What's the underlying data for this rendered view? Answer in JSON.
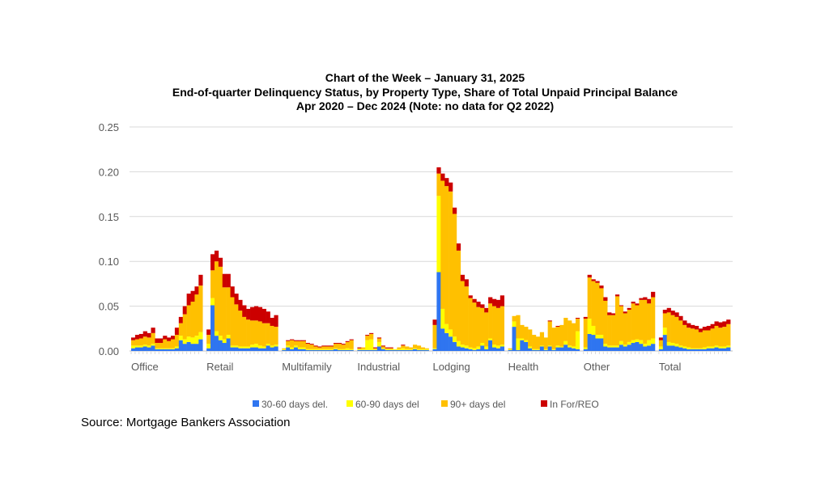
{
  "chart_data": {
    "type": "bar",
    "stacked": true,
    "title": [
      "Chart of the Week – January 31, 2025",
      "End-of-quarter Delinquency Status, by Property Type, Share of Total Unpaid Principal Balance",
      "Apr 2020 – Dec 2024 (Note: no data for Q2 2022)"
    ],
    "xlabel": "",
    "ylabel": "",
    "ylim": [
      0,
      0.25
    ],
    "yticks": [
      "0.00",
      "0.05",
      "0.10",
      "0.15",
      "0.20",
      "0.25"
    ],
    "grid": true,
    "legend_position": "bottom",
    "series_meta": [
      {
        "key": "d30",
        "name": "30-60 days del.",
        "color": "#2F75F0"
      },
      {
        "key": "d60",
        "name": "60-90 days del",
        "color": "#FFFF00"
      },
      {
        "key": "d90",
        "name": "90+ days del",
        "color": "#FFC000"
      },
      {
        "key": "reo",
        "name": "In For/REO",
        "color": "#CC0000"
      }
    ],
    "groups": [
      {
        "name": "Office",
        "d30": [
          0.003,
          0.004,
          0.004,
          0.005,
          0.004,
          0.006,
          0.002,
          0.002,
          0.002,
          0.002,
          0.002,
          0.003,
          0.012,
          0.008,
          0.01,
          0.008,
          0.008,
          0.013
        ],
        "d60": [
          0.003,
          0.002,
          0.002,
          0.002,
          0.002,
          0.002,
          0.001,
          0.001,
          0.001,
          0.001,
          0.001,
          0.002,
          0.005,
          0.005,
          0.006,
          0.007,
          0.009,
          0.008
        ],
        "d90": [
          0.006,
          0.007,
          0.008,
          0.009,
          0.009,
          0.012,
          0.006,
          0.006,
          0.01,
          0.008,
          0.01,
          0.013,
          0.014,
          0.028,
          0.035,
          0.04,
          0.046,
          0.052
        ],
        "reo": [
          0.003,
          0.005,
          0.005,
          0.006,
          0.005,
          0.006,
          0.005,
          0.005,
          0.004,
          0.004,
          0.004,
          0.008,
          0.007,
          0.009,
          0.013,
          0.012,
          0.009,
          0.012
        ]
      },
      {
        "name": "Retail",
        "d30": [
          0.003,
          0.051,
          0.017,
          0.012,
          0.009,
          0.014,
          0.004,
          0.004,
          0.003,
          0.003,
          0.003,
          0.004,
          0.004,
          0.003,
          0.003,
          0.006,
          0.004,
          0.005
        ],
        "d60": [
          0.005,
          0.008,
          0.005,
          0.005,
          0.004,
          0.004,
          0.002,
          0.002,
          0.002,
          0.002,
          0.002,
          0.003,
          0.004,
          0.003,
          0.002,
          0.002,
          0.002,
          0.002
        ],
        "d90": [
          0.01,
          0.031,
          0.078,
          0.077,
          0.058,
          0.053,
          0.054,
          0.046,
          0.04,
          0.033,
          0.03,
          0.027,
          0.026,
          0.027,
          0.026,
          0.023,
          0.022,
          0.02
        ],
        "reo": [
          0.006,
          0.018,
          0.012,
          0.01,
          0.015,
          0.015,
          0.012,
          0.012,
          0.012,
          0.013,
          0.012,
          0.015,
          0.016,
          0.016,
          0.016,
          0.013,
          0.009,
          0.013
        ]
      },
      {
        "name": "Multifamily",
        "d30": [
          0.001,
          0.004,
          0.002,
          0.004,
          0.002,
          0.002,
          0.001,
          0.001,
          0.001,
          0.001,
          0.001,
          0.001,
          0.001,
          0.002,
          0.001,
          0.001,
          0.001,
          0.001
        ],
        "d60": [
          0.001,
          0.002,
          0.002,
          0.002,
          0.002,
          0.002,
          0.001,
          0.001,
          0.001,
          0.001,
          0.001,
          0.001,
          0.001,
          0.001,
          0.001,
          0.001,
          0.002,
          0.001
        ],
        "d90": [
          0.001,
          0.005,
          0.008,
          0.005,
          0.007,
          0.007,
          0.006,
          0.005,
          0.003,
          0.002,
          0.003,
          0.003,
          0.003,
          0.005,
          0.006,
          0.005,
          0.007,
          0.01
        ],
        "reo": [
          0.0,
          0.001,
          0.001,
          0.001,
          0.001,
          0.001,
          0.001,
          0.001,
          0.001,
          0.001,
          0.001,
          0.001,
          0.001,
          0.001,
          0.001,
          0.001,
          0.001,
          0.001
        ]
      },
      {
        "name": "Industrial",
        "d30": [
          0.001,
          0.001,
          0.001,
          0.001,
          0.001,
          0.005,
          0.002,
          0.001,
          0.001,
          0.001,
          0.001,
          0.001,
          0.001,
          0.001,
          0.002,
          0.001,
          0.001,
          0.001
        ],
        "d60": [
          0.001,
          0.001,
          0.011,
          0.012,
          0.001,
          0.005,
          0.001,
          0.001,
          0.001,
          0.001,
          0.001,
          0.002,
          0.001,
          0.001,
          0.001,
          0.001,
          0.001,
          0.001
        ],
        "d90": [
          0.001,
          0.002,
          0.005,
          0.006,
          0.001,
          0.004,
          0.002,
          0.001,
          0.001,
          0.0,
          0.002,
          0.003,
          0.003,
          0.002,
          0.004,
          0.004,
          0.002,
          0.001
        ],
        "reo": [
          0.001,
          0.0,
          0.001,
          0.001,
          0.001,
          0.001,
          0.001,
          0.001,
          0.001,
          0.0,
          0.0,
          0.001,
          0.0,
          0.0,
          0.0,
          0.0,
          0.0,
          0.0
        ]
      },
      {
        "name": "Lodging",
        "d30": [
          0.002,
          0.088,
          0.025,
          0.02,
          0.016,
          0.01,
          0.005,
          0.004,
          0.003,
          0.002,
          0.001,
          0.002,
          0.006,
          0.002,
          0.012,
          0.004,
          0.003,
          0.005
        ],
        "d60": [
          0.001,
          0.085,
          0.022,
          0.01,
          0.008,
          0.006,
          0.006,
          0.003,
          0.003,
          0.002,
          0.002,
          0.003,
          0.003,
          0.003,
          0.002,
          0.003,
          0.003,
          0.002
        ],
        "d90": [
          0.026,
          0.025,
          0.143,
          0.154,
          0.154,
          0.137,
          0.101,
          0.071,
          0.066,
          0.055,
          0.051,
          0.044,
          0.039,
          0.038,
          0.039,
          0.043,
          0.042,
          0.043
        ],
        "reo": [
          0.006,
          0.007,
          0.008,
          0.009,
          0.01,
          0.007,
          0.008,
          0.007,
          0.008,
          0.003,
          0.004,
          0.006,
          0.004,
          0.005,
          0.007,
          0.008,
          0.009,
          0.012
        ]
      },
      {
        "name": "Health",
        "d30": [
          0.001,
          0.027,
          0.001,
          0.012,
          0.01,
          0.003,
          0.001,
          0.001,
          0.005,
          0.001,
          0.005,
          0.001,
          0.004,
          0.004,
          0.007,
          0.004,
          0.003,
          0.002
        ],
        "d60": [
          0.001,
          0.006,
          0.013,
          0.002,
          0.002,
          0.002,
          0.001,
          0.001,
          0.001,
          0.001,
          0.001,
          0.001,
          0.002,
          0.001,
          0.004,
          0.002,
          0.002,
          0.02
        ],
        "d90": [
          0.001,
          0.006,
          0.026,
          0.015,
          0.015,
          0.019,
          0.016,
          0.014,
          0.015,
          0.013,
          0.027,
          0.024,
          0.021,
          0.024,
          0.026,
          0.028,
          0.026,
          0.014
        ],
        "reo": [
          0.0,
          0.0,
          0.0,
          0.0,
          0.0,
          0.0,
          0.0,
          0.0,
          0.0,
          0.0,
          0.001,
          0.0,
          0.001,
          0.0,
          0.0,
          0.0,
          0.0,
          0.001
        ]
      },
      {
        "name": "Other",
        "d30": [
          0.002,
          0.019,
          0.018,
          0.014,
          0.014,
          0.005,
          0.004,
          0.004,
          0.004,
          0.007,
          0.005,
          0.007,
          0.009,
          0.01,
          0.008,
          0.005,
          0.006,
          0.008
        ],
        "d60": [
          0.002,
          0.017,
          0.01,
          0.004,
          0.004,
          0.003,
          0.002,
          0.002,
          0.002,
          0.004,
          0.002,
          0.003,
          0.003,
          0.003,
          0.004,
          0.003,
          0.006,
          0.006
        ],
        "d90": [
          0.032,
          0.046,
          0.05,
          0.058,
          0.052,
          0.048,
          0.034,
          0.034,
          0.055,
          0.039,
          0.035,
          0.036,
          0.041,
          0.038,
          0.045,
          0.049,
          0.041,
          0.046
        ],
        "reo": [
          0.002,
          0.003,
          0.002,
          0.002,
          0.003,
          0.004,
          0.003,
          0.002,
          0.002,
          0.001,
          0.002,
          0.002,
          0.002,
          0.002,
          0.002,
          0.003,
          0.005,
          0.006
        ]
      },
      {
        "name": "Total",
        "d30": [
          0.002,
          0.018,
          0.006,
          0.006,
          0.005,
          0.004,
          0.003,
          0.002,
          0.002,
          0.002,
          0.002,
          0.002,
          0.003,
          0.003,
          0.004,
          0.003,
          0.003,
          0.004
        ],
        "d60": [
          0.003,
          0.008,
          0.004,
          0.003,
          0.003,
          0.002,
          0.002,
          0.002,
          0.001,
          0.001,
          0.001,
          0.002,
          0.002,
          0.002,
          0.002,
          0.002,
          0.002,
          0.002
        ],
        "d90": [
          0.007,
          0.016,
          0.033,
          0.031,
          0.03,
          0.028,
          0.024,
          0.022,
          0.022,
          0.021,
          0.018,
          0.019,
          0.018,
          0.02,
          0.022,
          0.021,
          0.022,
          0.024
        ],
        "reo": [
          0.003,
          0.004,
          0.005,
          0.005,
          0.005,
          0.005,
          0.005,
          0.005,
          0.004,
          0.004,
          0.004,
          0.004,
          0.005,
          0.005,
          0.005,
          0.006,
          0.006,
          0.005
        ]
      }
    ]
  },
  "source": "Source: Mortgage Bankers Association"
}
